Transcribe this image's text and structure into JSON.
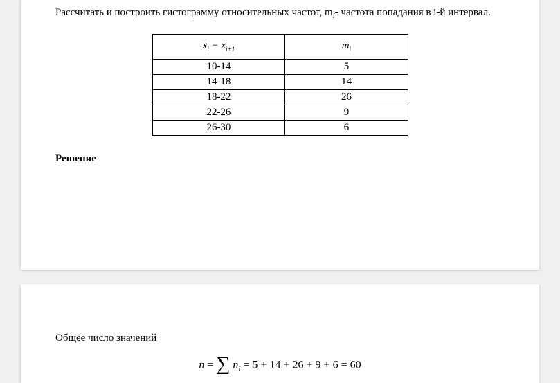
{
  "intro": {
    "line1": "Рассчитать и построить гистограмму относительных частот, m",
    "sub_i1": "i",
    "line1b": "- частота",
    "line2": "попадания в i-й интервал."
  },
  "table": {
    "header": {
      "col1_x": "x",
      "col1_i": "i",
      "col1_minus": " − ",
      "col1_x2": "x",
      "col1_i1": "i+1",
      "col2_m": "m",
      "col2_i": "i"
    },
    "rows": [
      {
        "interval": "10-14",
        "freq": "5"
      },
      {
        "interval": "14-18",
        "freq": "14"
      },
      {
        "interval": "18-22",
        "freq": "26"
      },
      {
        "interval": "22-26",
        "freq": "9"
      },
      {
        "interval": "26-30",
        "freq": "6"
      }
    ]
  },
  "solution_heading": "Решение",
  "page2": {
    "text": "Общее число значений",
    "formula": {
      "n": "n",
      "eq1": " = ",
      "sum": "∑",
      "ni_n": "n",
      "ni_i": "i",
      "eq2": " = 5 + 14 + 26 + 9 + 6 = 60"
    }
  }
}
